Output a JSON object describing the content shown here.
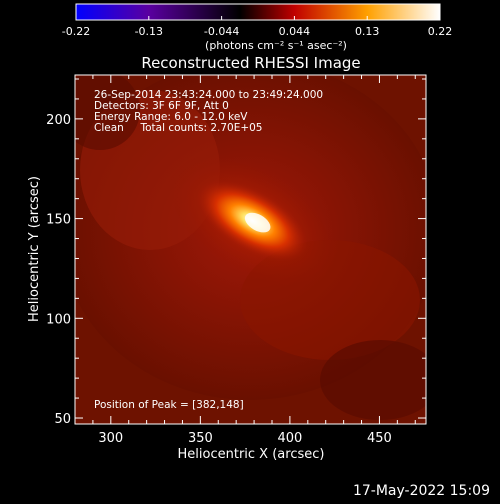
{
  "chart_data": {
    "type": "heatmap",
    "title": "Reconstructed RHESSI Image",
    "xlabel": "Heliocentric X (arcsec)",
    "ylabel": "Heliocentric Y (arcsec)",
    "xlim": [
      280,
      476
    ],
    "ylim": [
      47,
      222
    ],
    "x_ticks": [
      300,
      350,
      400,
      450
    ],
    "y_ticks": [
      50,
      100,
      150,
      200
    ],
    "colorbar": {
      "range": [
        -0.22,
        0.22
      ],
      "ticks": [
        "-0.22",
        "-0.13",
        "-0.044",
        "0.044",
        "0.13",
        "0.22"
      ],
      "unit_label": "(photons cm⁻² s⁻¹ asec⁻²)",
      "colormap": [
        "#0000ff",
        "#5a00a0",
        "#000000",
        "#c00000",
        "#ffa000",
        "#ffffff"
      ]
    },
    "annotations": [
      "26-Sep-2014 23:43:24.000 to 23:49:24.000",
      "Detectors: 3F 6F 9F, Att 0",
      "Energy Range: 6.0 - 12.0 keV",
      "Clean     Total counts: 2.70E+05"
    ],
    "peak_text": "Position of Peak = [382,148]",
    "peak": {
      "x": 382,
      "y": 148
    },
    "source": {
      "cx": 379,
      "cy": 149,
      "elongation_angle_deg": -30
    }
  },
  "footer_timestamp": "17-May-2022 15:09"
}
